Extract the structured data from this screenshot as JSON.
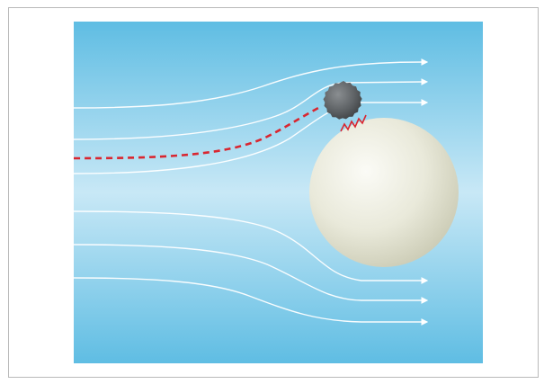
{
  "diagram": {
    "type": "interception-of-particle-by-collector",
    "background": {
      "edge_color": "#5fbde3",
      "center_color": "#c8e8f6"
    },
    "streamline_color": "#ffffff",
    "particle_path_color": "#d92630",
    "particle_color": "#5c6063",
    "collector_color": "#e9e9da",
    "attachment_marks_color": "#d92630",
    "counts": {
      "streamlines_above": 3,
      "streamlines_below": 3
    }
  }
}
